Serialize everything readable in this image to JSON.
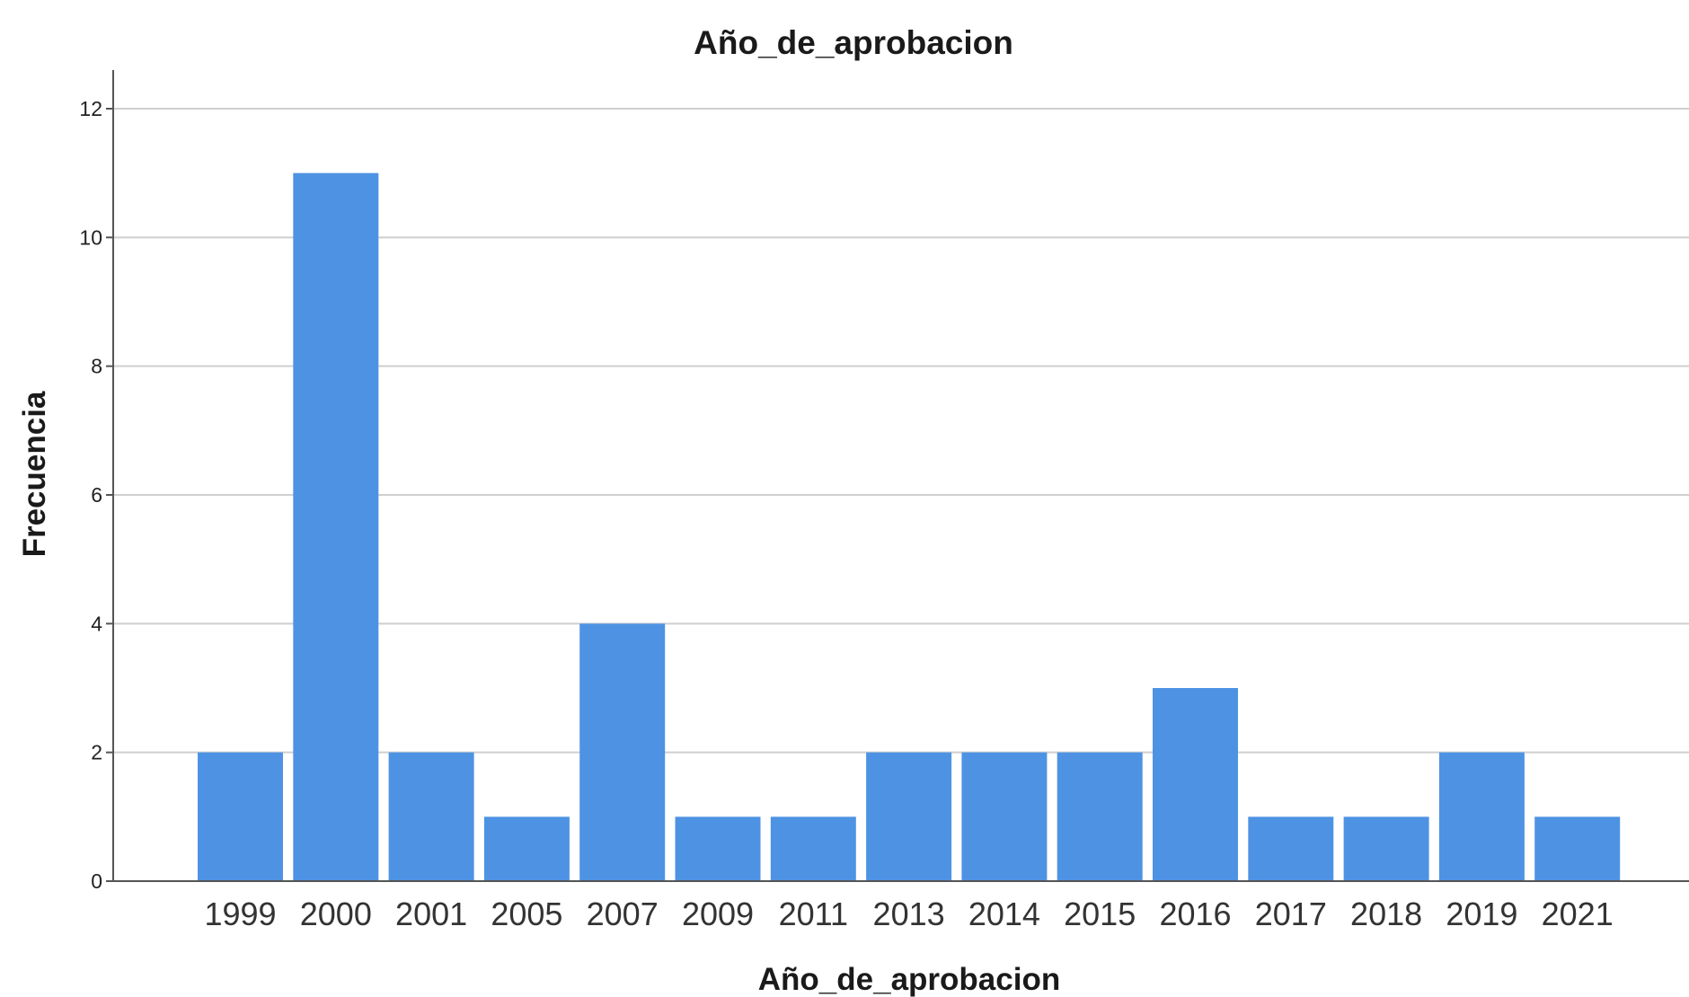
{
  "chart_data": {
    "type": "bar",
    "title": "Año_de_aprobacion",
    "xlabel": "Año_de_aprobacion",
    "ylabel": "Frecuencia",
    "categories": [
      "1999",
      "2000",
      "2001",
      "2005",
      "2007",
      "2009",
      "2011",
      "2013",
      "2014",
      "2015",
      "2016",
      "2017",
      "2018",
      "2019",
      "2021"
    ],
    "values": [
      2,
      11,
      2,
      1,
      4,
      1,
      1,
      2,
      2,
      2,
      3,
      1,
      1,
      2,
      1
    ],
    "ylim": [
      0,
      12.6
    ],
    "yticks": [
      "0",
      "2",
      "4",
      "6",
      "8",
      "10",
      "12"
    ],
    "grid": true,
    "legend": "none",
    "bar_color": "#4e93e3",
    "grid_color": "#cfcfcf",
    "axis_color": "#555555"
  }
}
